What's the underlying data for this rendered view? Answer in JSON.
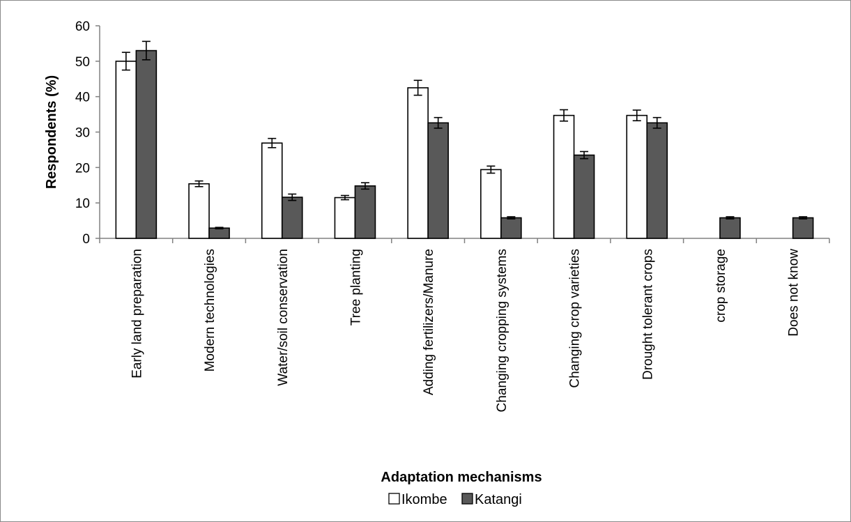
{
  "chart_data": {
    "type": "bar",
    "ylabel": "Respondents (%)",
    "xlabel": "Adaptation mechanisms",
    "ylim": [
      0,
      60
    ],
    "yticks": [
      0,
      10,
      20,
      30,
      40,
      50,
      60
    ],
    "grid": false,
    "legend_position": "bottom",
    "error_bars": true,
    "categories": [
      "Early land preparation",
      "Modern  technologies",
      "Water/soil conservation",
      "Tree planting",
      "Adding fertilizers/Manure",
      "Changing cropping systems",
      "Changing crop varieties",
      "Drought tolerant crops",
      "crop storage",
      "Does not know"
    ],
    "series": [
      {
        "name": "Ikombe",
        "color": "#ffffff",
        "values": [
          50,
          15.4,
          26.9,
          11.5,
          42.5,
          19.4,
          34.7,
          34.7,
          0,
          0
        ],
        "errors": [
          2.5,
          0.8,
          1.3,
          0.6,
          2.1,
          1.0,
          1.6,
          1.5,
          0,
          0
        ]
      },
      {
        "name": "Katangi",
        "color": "#595959",
        "values": [
          53,
          2.9,
          11.6,
          14.8,
          32.6,
          5.8,
          23.5,
          32.6,
          5.8,
          5.8
        ],
        "errors": [
          2.6,
          0.2,
          0.9,
          0.9,
          1.5,
          0.3,
          1.0,
          1.5,
          0.3,
          0.3
        ]
      }
    ]
  }
}
